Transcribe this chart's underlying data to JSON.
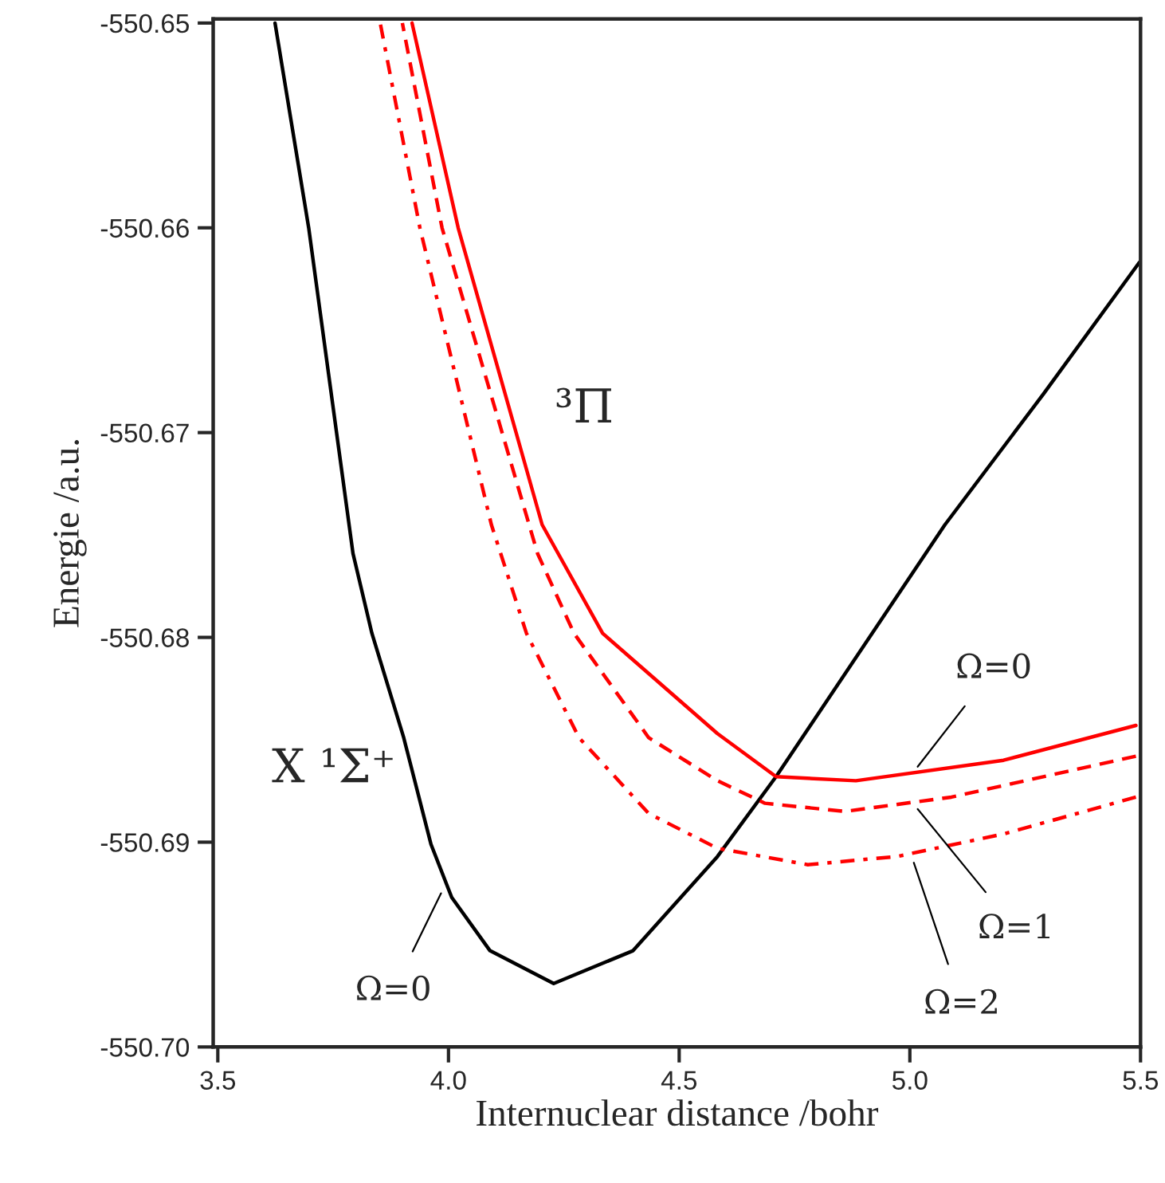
{
  "chart_data": {
    "type": "line",
    "xlabel": "Internuclear distance /bohr",
    "ylabel": "Energie /a.u.",
    "xlim": [
      3.49,
      5.5
    ],
    "ylim": [
      -550.7,
      -550.6498
    ],
    "xticks": [
      {
        "value": 3.5,
        "label": "3.5"
      },
      {
        "value": 4.0,
        "label": "4.0"
      },
      {
        "value": 4.5,
        "label": "4.5"
      },
      {
        "value": 5.0,
        "label": "5.0"
      },
      {
        "value": 5.5,
        "label": "5.5"
      }
    ],
    "yticks": [
      {
        "value": -550.7,
        "label": "-550.70"
      },
      {
        "value": -550.69,
        "label": "-550.69"
      },
      {
        "value": -550.68,
        "label": "-550.68"
      },
      {
        "value": -550.67,
        "label": "-550.67"
      },
      {
        "value": -550.66,
        "label": "-550.66"
      },
      {
        "value": -550.65,
        "label": "-550.65"
      }
    ],
    "grid": false,
    "marker": "none",
    "series": [
      {
        "color": "#000000",
        "line_style": "solid",
        "x": [
          3.624,
          3.697,
          3.793,
          3.834,
          3.903,
          3.962,
          4.007,
          4.09,
          4.228,
          4.4,
          4.583,
          4.71,
          5.076,
          5.29,
          5.497
        ],
        "values": [
          -550.65,
          -550.66,
          -550.6759,
          -550.6798,
          -550.6849,
          -550.6901,
          -550.6927,
          -550.6953,
          -550.6969,
          -550.6953,
          -550.6907,
          -550.6868,
          -550.6745,
          -550.6681,
          -550.6617
        ]
      },
      {
        "color": "#ff0000",
        "line_style": "solid",
        "x": [
          3.921,
          4.021,
          4.203,
          4.334,
          4.583,
          4.71,
          4.883,
          5.203,
          5.49
        ],
        "values": [
          -550.65,
          -550.66,
          -550.6745,
          -550.6798,
          -550.6847,
          -550.6868,
          -550.687,
          -550.686,
          -550.6843
        ]
      },
      {
        "color": "#ff0000",
        "line_style": "dashed",
        "x": [
          3.9,
          3.986,
          4.193,
          4.272,
          4.434,
          4.583,
          4.686,
          4.859,
          5.09,
          5.49
        ],
        "values": [
          -550.65,
          -550.66,
          -550.6759,
          -550.6798,
          -550.6849,
          -550.687,
          -550.6881,
          -550.6885,
          -550.6878,
          -550.6858
        ]
      },
      {
        "color": "#ff0000",
        "line_style": "dashdot",
        "x": [
          3.852,
          3.938,
          4.093,
          4.169,
          4.283,
          4.434,
          4.583,
          4.779,
          4.972,
          5.203,
          5.49
        ],
        "values": [
          -550.65,
          -550.66,
          -550.6745,
          -550.6798,
          -550.6849,
          -550.6886,
          -550.6903,
          -550.6911,
          -550.6907,
          -550.6896,
          -550.6878
        ]
      }
    ],
    "annotations": [
      "³Π",
      "X ¹Σ⁺",
      {
        "text": "Ω=0",
        "x": 3.986,
        "y": -550.6924
      },
      {
        "text": "Ω=0",
        "x": 5.014,
        "y": -550.6864
      },
      {
        "text": "Ω=1",
        "x": 5.014,
        "y": -550.6883
      },
      {
        "text": "Ω=2",
        "x": 5.007,
        "y": -550.6909
      }
    ]
  }
}
